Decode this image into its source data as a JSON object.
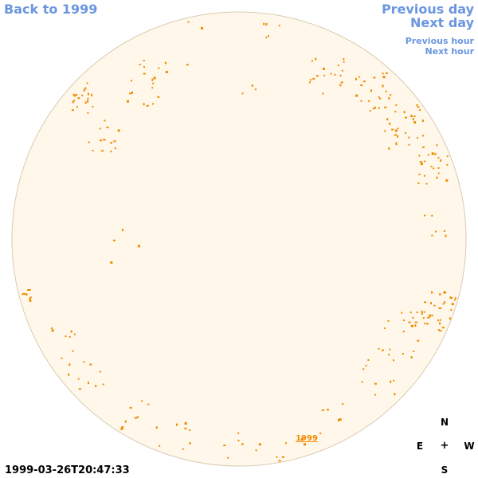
{
  "nav": {
    "back_label": "Back to 1999",
    "prev_day_label": "Previous day",
    "next_day_label": "Next day",
    "prev_hour_label": "Previous hour",
    "next_hour_label": "Next hour"
  },
  "sky": {
    "year_label": "1999"
  },
  "compass": {
    "north": "N",
    "south": "S",
    "east": "E",
    "west": "W",
    "center": "+"
  },
  "timestamp": "1999-03-26T20:47:33",
  "colors": {
    "disk_fill": "#fff8ea",
    "disk_stroke": "#d8cbb0",
    "star_color": "#f08a00",
    "link_color": "#6b96e0"
  }
}
